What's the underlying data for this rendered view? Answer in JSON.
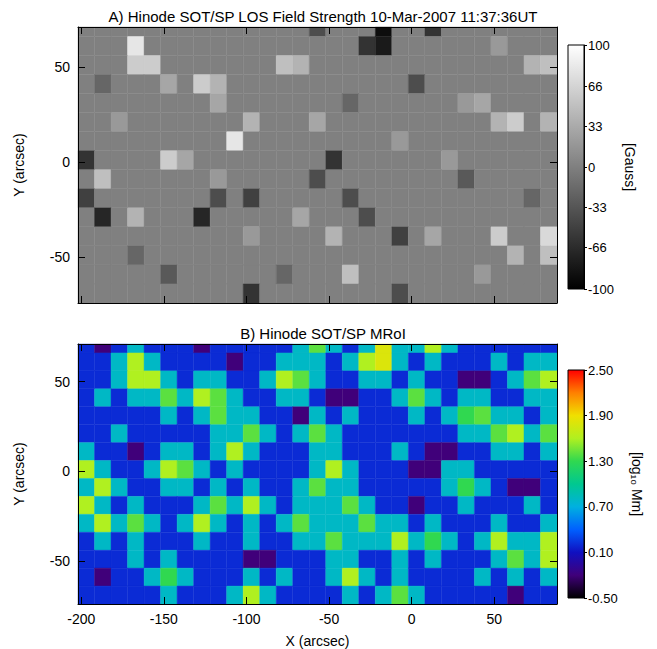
{
  "chart_data": [
    {
      "type": "heatmap",
      "title": "A) Hinode SOT/SP LOS Field Strength 10-Mar-2007 11:37:36UT",
      "ylabel": "Y (arcsec)",
      "color": "gray",
      "tick_labels": "y",
      "xlim": [
        -202,
        88
      ],
      "ylim": [
        -74,
        71
      ],
      "xticks": [
        -200,
        -150,
        -100,
        -50,
        0,
        50
      ],
      "yticks": [
        -50,
        0,
        50
      ],
      "x": [
        -197,
        -187,
        -177,
        -167,
        -157,
        -147,
        -137,
        -127,
        -117,
        -107,
        -97,
        -87,
        -77,
        -67,
        -57,
        -47,
        -37,
        -27,
        -17,
        -7,
        3,
        13,
        23,
        33,
        43,
        53,
        63,
        73,
        83
      ],
      "y": [
        71,
        61,
        51,
        41,
        31,
        21,
        11,
        1,
        -9,
        -19,
        -29,
        -39,
        -49,
        -59,
        -69
      ],
      "cells": [
        [
          0,
          0,
          0,
          0,
          0,
          0,
          0,
          0,
          0,
          0,
          0,
          0,
          0,
          0,
          -40,
          0,
          0,
          0,
          -90,
          0,
          0,
          -60,
          0,
          0,
          0,
          0,
          0,
          0,
          0
        ],
        [
          0,
          0,
          0,
          80,
          0,
          0,
          0,
          0,
          0,
          0,
          0,
          0,
          0,
          0,
          0,
          0,
          0,
          -60,
          -80,
          0,
          0,
          0,
          0,
          0,
          0,
          20,
          0,
          0,
          0
        ],
        [
          0,
          0,
          0,
          60,
          60,
          0,
          0,
          0,
          0,
          0,
          0,
          0,
          50,
          40,
          0,
          0,
          0,
          0,
          0,
          0,
          0,
          0,
          0,
          0,
          0,
          0,
          0,
          40,
          50
        ],
        [
          0,
          -20,
          0,
          0,
          0,
          30,
          0,
          60,
          40,
          0,
          0,
          0,
          0,
          0,
          0,
          0,
          0,
          0,
          0,
          0,
          -40,
          0,
          0,
          0,
          0,
          0,
          0,
          0,
          0
        ],
        [
          0,
          0,
          0,
          0,
          0,
          0,
          0,
          0,
          30,
          0,
          0,
          0,
          0,
          0,
          0,
          0,
          -20,
          0,
          0,
          0,
          0,
          0,
          0,
          20,
          30,
          0,
          0,
          0,
          0
        ],
        [
          0,
          0,
          20,
          0,
          0,
          0,
          0,
          0,
          0,
          0,
          40,
          0,
          0,
          0,
          30,
          0,
          0,
          0,
          0,
          0,
          0,
          0,
          0,
          0,
          0,
          40,
          60,
          0,
          40
        ],
        [
          0,
          0,
          0,
          0,
          0,
          0,
          0,
          0,
          0,
          80,
          0,
          0,
          0,
          0,
          0,
          0,
          0,
          0,
          0,
          20,
          0,
          0,
          0,
          0,
          0,
          0,
          0,
          0,
          0
        ],
        [
          -60,
          0,
          0,
          0,
          0,
          60,
          30,
          0,
          0,
          0,
          0,
          0,
          0,
          0,
          0,
          -60,
          0,
          0,
          0,
          0,
          0,
          0,
          20,
          0,
          0,
          0,
          0,
          0,
          0
        ],
        [
          0,
          50,
          0,
          0,
          0,
          0,
          0,
          0,
          20,
          0,
          0,
          0,
          0,
          0,
          -40,
          0,
          0,
          0,
          0,
          0,
          0,
          0,
          0,
          -30,
          0,
          0,
          0,
          0,
          0
        ],
        [
          -50,
          0,
          0,
          0,
          0,
          0,
          0,
          0,
          -40,
          0,
          -50,
          0,
          0,
          0,
          0,
          0,
          -40,
          0,
          0,
          0,
          0,
          0,
          0,
          0,
          0,
          0,
          0,
          -20,
          0
        ],
        [
          0,
          -70,
          0,
          40,
          0,
          0,
          0,
          -70,
          0,
          0,
          0,
          0,
          0,
          30,
          0,
          0,
          0,
          -40,
          0,
          0,
          0,
          0,
          0,
          0,
          0,
          0,
          0,
          0,
          0
        ],
        [
          0,
          0,
          0,
          0,
          0,
          0,
          0,
          0,
          0,
          0,
          20,
          0,
          0,
          0,
          0,
          40,
          0,
          0,
          0,
          -50,
          0,
          30,
          0,
          0,
          0,
          60,
          0,
          0,
          70
        ],
        [
          0,
          0,
          0,
          -20,
          0,
          0,
          0,
          0,
          0,
          0,
          0,
          0,
          0,
          0,
          0,
          0,
          0,
          0,
          0,
          0,
          0,
          0,
          0,
          0,
          0,
          0,
          40,
          0,
          50
        ],
        [
          0,
          0,
          0,
          0,
          0,
          -30,
          0,
          0,
          0,
          0,
          0,
          0,
          -20,
          0,
          0,
          0,
          50,
          0,
          0,
          0,
          0,
          0,
          0,
          0,
          20,
          0,
          0,
          0,
          0
        ],
        [
          0,
          0,
          0,
          0,
          0,
          0,
          0,
          0,
          0,
          0,
          -60,
          0,
          0,
          0,
          0,
          0,
          0,
          0,
          0,
          -40,
          0,
          0,
          0,
          0,
          0,
          0,
          0,
          0,
          0
        ]
      ],
      "colorbar": {
        "label": "[Gauss]",
        "range": [
          -100,
          100
        ],
        "ticks": [
          100,
          66,
          33,
          0,
          -33,
          -66,
          -100
        ]
      }
    },
    {
      "type": "heatmap",
      "title": "B) Hinode SOT/SP MRoI",
      "xlabel": "X (arcsec)",
      "ylabel": "Y (arcsec)",
      "color": "rainbow",
      "xlim": [
        -202,
        88
      ],
      "ylim": [
        -74,
        71
      ],
      "xticks": [
        -200,
        -150,
        -100,
        -50,
        0,
        50
      ],
      "yticks": [
        -50,
        0,
        50
      ],
      "x": [
        -197,
        -187,
        -177,
        -167,
        -157,
        -147,
        -137,
        -127,
        -117,
        -107,
        -97,
        -87,
        -77,
        -67,
        -57,
        -47,
        -37,
        -27,
        -17,
        -7,
        3,
        13,
        23,
        33,
        43,
        53,
        63,
        73,
        83
      ],
      "y": [
        71,
        61,
        51,
        41,
        31,
        21,
        11,
        1,
        -9,
        -19,
        -29,
        -39,
        -49,
        -59,
        -69
      ],
      "cells": [
        [
          0.2,
          -0.2,
          0.2,
          0.8,
          0.2,
          0.2,
          0.2,
          -0.2,
          0.2,
          0.2,
          0.2,
          0.2,
          0.2,
          0.8,
          1.4,
          0.8,
          0.2,
          0.8,
          1.8,
          0.8,
          0.8,
          1.6,
          0.8,
          0.2,
          0.2,
          0.2,
          0.2,
          0.2,
          0.2
        ],
        [
          0.2,
          0.2,
          0.8,
          1.6,
          0.8,
          0.2,
          0.2,
          0.2,
          0.2,
          -0.2,
          0.2,
          0.2,
          0.8,
          0.8,
          0.8,
          0.2,
          0.8,
          1.6,
          1.8,
          0.8,
          0.2,
          0.8,
          0.2,
          0.2,
          0.2,
          0.8,
          0.2,
          0.8,
          0.8
        ],
        [
          0.2,
          0.2,
          0.8,
          1.6,
          1.6,
          0.8,
          0.2,
          0.8,
          0.8,
          0.2,
          0.2,
          0.8,
          1.6,
          1.4,
          0.8,
          0.2,
          0.2,
          0.8,
          0.8,
          0.2,
          0.8,
          0.2,
          0.2,
          -0.2,
          -0.2,
          0.2,
          0.8,
          1.4,
          1.6
        ],
        [
          0.2,
          0.8,
          0.2,
          0.8,
          0.8,
          1.4,
          0.8,
          1.6,
          1.4,
          0.8,
          0.2,
          0.2,
          0.8,
          0.8,
          0.2,
          -0.2,
          -0.2,
          0.2,
          0.2,
          0.8,
          1.4,
          0.8,
          0.2,
          0.8,
          0.8,
          0.2,
          0.2,
          0.8,
          0.8
        ],
        [
          0.2,
          0.2,
          0.2,
          0.2,
          0.2,
          0.8,
          0.2,
          0.8,
          1.4,
          0.8,
          0.8,
          0.2,
          0.2,
          -0.2,
          0.8,
          0.2,
          0.8,
          0.2,
          0.2,
          0.2,
          0.8,
          0.2,
          0.8,
          1.3,
          1.4,
          0.8,
          0.8,
          0.2,
          0.8
        ],
        [
          0.2,
          0.2,
          0.8,
          0.2,
          0.2,
          0.2,
          0.2,
          0.2,
          0.8,
          0.8,
          1.4,
          0.8,
          0.2,
          0.8,
          1.4,
          0.8,
          0.2,
          0.2,
          0.2,
          0.2,
          0.2,
          0.2,
          0.2,
          0.8,
          0.8,
          1.4,
          1.6,
          0.8,
          1.4
        ],
        [
          0.8,
          0.2,
          0.2,
          -0.2,
          0.2,
          0.8,
          0.8,
          0.2,
          0.8,
          1.6,
          0.8,
          0.2,
          0.2,
          0.2,
          0.8,
          0.8,
          0.2,
          0.2,
          0.2,
          0.8,
          0.2,
          -0.2,
          -0.2,
          0.2,
          0.2,
          0.8,
          0.8,
          0.2,
          0.8
        ],
        [
          1.6,
          0.8,
          0.2,
          0.2,
          0.8,
          1.6,
          1.4,
          0.8,
          0.2,
          0.8,
          0.2,
          0.2,
          0.2,
          0.2,
          0.8,
          1.6,
          0.8,
          0.2,
          0.2,
          0.2,
          -0.2,
          -0.2,
          0.8,
          0.8,
          0.2,
          0.2,
          0.2,
          0.2,
          0.2
        ],
        [
          0.8,
          1.6,
          0.8,
          0.2,
          0.2,
          0.8,
          0.8,
          0.2,
          0.8,
          0.2,
          0.8,
          0.2,
          0.2,
          0.8,
          1.4,
          0.8,
          0.8,
          0.2,
          0.2,
          0.2,
          0.2,
          0.2,
          0.8,
          1.3,
          0.8,
          0.2,
          -0.2,
          -0.2,
          0.2
        ],
        [
          1.6,
          0.8,
          0.2,
          0.8,
          0.2,
          0.2,
          0.2,
          0.8,
          1.4,
          0.8,
          1.6,
          0.8,
          0.2,
          0.8,
          0.8,
          0.8,
          1.4,
          0.8,
          0.2,
          0.2,
          -0.2,
          0.2,
          0.2,
          0.8,
          0.2,
          0.2,
          0.2,
          0.8,
          0.2
        ],
        [
          0.8,
          1.6,
          0.8,
          1.4,
          0.8,
          0.2,
          0.8,
          1.6,
          0.8,
          0.2,
          0.8,
          0.2,
          0.8,
          1.4,
          0.8,
          0.8,
          0.8,
          1.4,
          0.8,
          0.8,
          0.2,
          0.8,
          0.2,
          0.2,
          0.2,
          0.8,
          0.2,
          0.2,
          0.8
        ],
        [
          0.2,
          0.8,
          0.2,
          0.8,
          0.2,
          0.2,
          0.2,
          0.8,
          0.2,
          0.2,
          0.8,
          0.2,
          0.2,
          0.8,
          0.8,
          1.4,
          0.8,
          0.8,
          0.8,
          1.6,
          0.8,
          1.3,
          0.8,
          0.2,
          0.8,
          1.6,
          0.8,
          0.8,
          1.6
        ],
        [
          0.2,
          0.2,
          0.2,
          0.8,
          0.2,
          0.8,
          0.2,
          0.2,
          0.2,
          0.2,
          -0.2,
          -0.2,
          0.2,
          0.2,
          0.2,
          0.8,
          0.8,
          0.2,
          0.2,
          0.8,
          0.2,
          0.8,
          0.2,
          0.2,
          0.2,
          0.8,
          1.4,
          0.8,
          1.6
        ],
        [
          0.2,
          -0.2,
          0.2,
          0.2,
          0.8,
          1.3,
          0.8,
          0.2,
          0.2,
          0.2,
          0.8,
          0.2,
          0.8,
          0.2,
          0.2,
          0.8,
          1.6,
          0.8,
          0.2,
          0.8,
          0.2,
          0.2,
          0.2,
          0.2,
          0.8,
          0.2,
          0.8,
          0.2,
          0.8
        ],
        [
          0.2,
          0.2,
          0.2,
          0.2,
          0.2,
          0.8,
          0.2,
          0.2,
          0.2,
          0.8,
          1.6,
          0.8,
          0.2,
          0.2,
          0.2,
          0.2,
          0.8,
          0.2,
          0.8,
          1.4,
          0.8,
          0.2,
          0.2,
          0.2,
          0.2,
          0.2,
          -0.2,
          0.2,
          0.2
        ]
      ],
      "colorbar": {
        "label": "[log₁₀ Mm]",
        "range": [
          -0.5,
          2.5
        ],
        "ticks": [
          {
            "value": 2.5,
            "label": "2.50"
          },
          {
            "value": 1.9,
            "label": "1.90"
          },
          {
            "value": 1.3,
            "label": "1.30"
          },
          {
            "value": 0.7,
            "label": "0.70"
          },
          {
            "value": 0.1,
            "label": "0.10"
          },
          {
            "value": -0.5,
            "label": "-0.50"
          }
        ]
      }
    }
  ]
}
